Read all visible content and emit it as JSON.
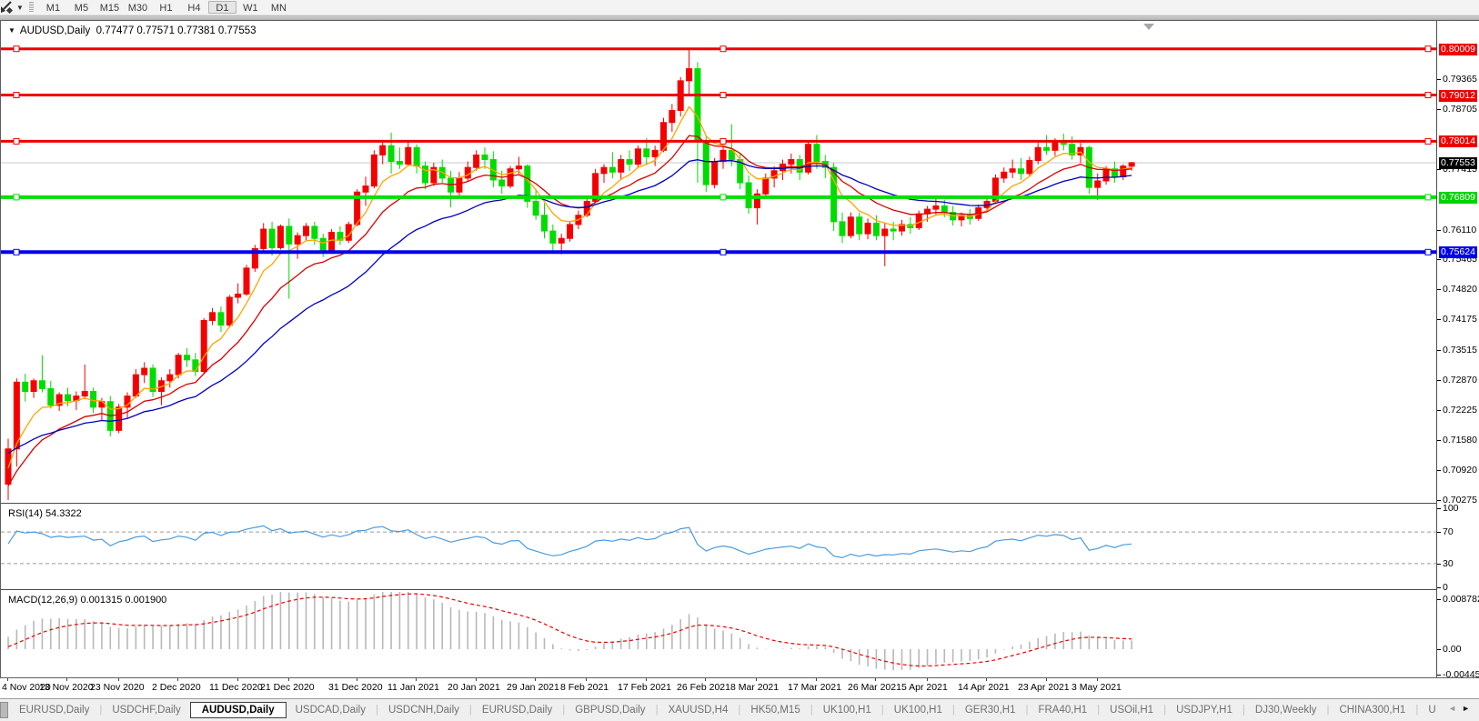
{
  "toolbar": {
    "timeframes": [
      {
        "label": "M1",
        "active": false
      },
      {
        "label": "M5",
        "active": false
      },
      {
        "label": "M15",
        "active": false
      },
      {
        "label": "M30",
        "active": false
      },
      {
        "label": "H1",
        "active": false
      },
      {
        "label": "H4",
        "active": false
      },
      {
        "label": "D1",
        "active": true
      },
      {
        "label": "W1",
        "active": false
      },
      {
        "label": "MN",
        "active": false
      }
    ],
    "dropdown_glyph": "▼"
  },
  "title": {
    "triangle": "▼",
    "symbol": "AUDUSD,Daily",
    "ohlc": "0.77477 0.77571 0.77381 0.77553"
  },
  "price_axis": {
    "ticks": [
      {
        "t": "0.79365",
        "v": 0.79365
      },
      {
        "t": "0.78705",
        "v": 0.78705
      },
      {
        "t": "0.77415",
        "v": 0.77415
      },
      {
        "t": "0.76110",
        "v": 0.7611
      },
      {
        "t": "0.75465",
        "v": 0.75465
      },
      {
        "t": "0.74820",
        "v": 0.7482
      },
      {
        "t": "0.74175",
        "v": 0.74175
      },
      {
        "t": "0.73515",
        "v": 0.73515
      },
      {
        "t": "0.72870",
        "v": 0.7287
      },
      {
        "t": "0.72225",
        "v": 0.72225
      },
      {
        "t": "0.71580",
        "v": 0.7158
      },
      {
        "t": "0.70920",
        "v": 0.7092
      },
      {
        "t": "0.70275",
        "v": 0.70275
      }
    ],
    "badges": [
      {
        "t": "0.80009",
        "v": 0.80009,
        "bg": "#EE0000",
        "fg": "#FFFFFF"
      },
      {
        "t": "0.79012",
        "v": 0.79012,
        "bg": "#EE0000",
        "fg": "#FFFFFF"
      },
      {
        "t": "0.78014",
        "v": 0.78014,
        "bg": "#EE0000",
        "fg": "#FFFFFF"
      },
      {
        "t": "0.77553",
        "v": 0.77553,
        "bg": "#000000",
        "fg": "#FFFFFF"
      },
      {
        "t": "0.76809",
        "v": 0.76809,
        "bg": "#00D400",
        "fg": "#FFFFFF"
      },
      {
        "t": "0.75624",
        "v": 0.75624,
        "bg": "#0000EE",
        "fg": "#FFFFFF"
      }
    ]
  },
  "rsi_panel": {
    "name": "RSI(14)",
    "value": "54.3322",
    "axis": [
      {
        "t": "100",
        "v": 100
      },
      {
        "t": "70",
        "v": 70
      },
      {
        "t": "30",
        "v": 30
      },
      {
        "t": "0",
        "v": 0
      }
    ],
    "dashed_levels": [
      70,
      30
    ],
    "line_color": "#4A9BDE"
  },
  "macd_panel": {
    "name": "MACD(12,26,9)",
    "values": "0.001315 0.001900",
    "axis": [
      {
        "t": "0.008782",
        "v": 0.008782
      },
      {
        "t": "0.00",
        "v": 0
      },
      {
        "t": "-0.004451",
        "v": -0.004451
      }
    ],
    "hist_color": "#B8B8B8",
    "signal_color": "#EE0000"
  },
  "dates": [
    {
      "t": "4 Nov 2020",
      "i": 0
    },
    {
      "t": "13 Nov 2020",
      "i": 7
    },
    {
      "t": "23 Nov 2020",
      "i": 13
    },
    {
      "t": "2 Dec 2020",
      "i": 20
    },
    {
      "t": "11 Dec 2020",
      "i": 27
    },
    {
      "t": "21 Dec 2020",
      "i": 33
    },
    {
      "t": "31 Dec 2020",
      "i": 41
    },
    {
      "t": "11 Jan 2021",
      "i": 48
    },
    {
      "t": "20 Jan 2021",
      "i": 55
    },
    {
      "t": "29 Jan 2021",
      "i": 62
    },
    {
      "t": "8 Feb 2021",
      "i": 68
    },
    {
      "t": "17 Feb 2021",
      "i": 75
    },
    {
      "t": "26 Feb 2021",
      "i": 82
    },
    {
      "t": "8 Mar 2021",
      "i": 88
    },
    {
      "t": "17 Mar 2021",
      "i": 95
    },
    {
      "t": "26 Mar 2021",
      "i": 102
    },
    {
      "t": "5 Apr 2021",
      "i": 108
    },
    {
      "t": "14 Apr 2021",
      "i": 115
    },
    {
      "t": "23 Apr 2021",
      "i": 122
    },
    {
      "t": "3 May 2021",
      "i": 128
    }
  ],
  "tabs": {
    "items": [
      {
        "t": "EURUSD,Daily",
        "active": false
      },
      {
        "t": "USDCHF,Daily",
        "active": false
      },
      {
        "t": "AUDUSD,Daily",
        "active": true
      },
      {
        "t": "USDCAD,Daily",
        "active": false
      },
      {
        "t": "USDCNH,Daily",
        "active": false
      },
      {
        "t": "EURUSD,Daily",
        "active": false
      },
      {
        "t": "GBPUSD,Daily",
        "active": false
      },
      {
        "t": "XAUUSD,H4",
        "active": false
      },
      {
        "t": "HK50,M15",
        "active": false
      },
      {
        "t": "UK100,H1",
        "active": false
      },
      {
        "t": "UK100,H1",
        "active": false
      },
      {
        "t": "GER30,H1",
        "active": false
      },
      {
        "t": "FRA40,H1",
        "active": false
      },
      {
        "t": "USOil,H1",
        "active": false
      },
      {
        "t": "USDJPY,H1",
        "active": false
      },
      {
        "t": "DJ30,Weekly",
        "active": false
      },
      {
        "t": "CHINA300,H1",
        "active": false
      },
      {
        "t": "U",
        "active": false
      }
    ],
    "left_arrow": "◄",
    "right_arrow": "►"
  },
  "chart_data": {
    "type": "candlestick",
    "symbol": "AUDUSD",
    "timeframe": "Daily",
    "last_ohlc": {
      "open": 0.77477,
      "high": 0.77571,
      "low": 0.77381,
      "close": 0.77553
    },
    "current_price": 0.77553,
    "convention": "red=bullish green=bearish",
    "up_color": "#F40000",
    "down_color": "#00DC00",
    "current_price_line_color": "#C8C8C8",
    "hlines": [
      {
        "price": 0.80009,
        "color": "#EE0000",
        "width": 3
      },
      {
        "price": 0.79012,
        "color": "#EE0000",
        "width": 3
      },
      {
        "price": 0.78014,
        "color": "#EE0000",
        "width": 3
      },
      {
        "price": 0.76809,
        "color": "#00E000",
        "width": 4
      },
      {
        "price": 0.75624,
        "color": "#0000EE",
        "width": 4
      }
    ],
    "moving_averages": [
      {
        "period": 6,
        "color": "#FFA500",
        "seed": 0.708
      },
      {
        "period": 13,
        "color": "#D80000",
        "seed": 0.7045
      },
      {
        "period": 26,
        "color": "#0000BE",
        "seed": 0.7128
      }
    ],
    "rsi_period": 14,
    "macd_params": [
      12,
      26,
      9
    ],
    "bars": [
      [
        0.7062,
        0.716,
        0.7028,
        0.7138
      ],
      [
        0.7138,
        0.729,
        0.71,
        0.7282
      ],
      [
        0.7282,
        0.73,
        0.724,
        0.7262
      ],
      [
        0.7262,
        0.729,
        0.7248,
        0.7285
      ],
      [
        0.7285,
        0.734,
        0.726,
        0.7268
      ],
      [
        0.7268,
        0.7285,
        0.7225,
        0.7232
      ],
      [
        0.7232,
        0.726,
        0.722,
        0.7255
      ],
      [
        0.7255,
        0.727,
        0.723,
        0.7242
      ],
      [
        0.7242,
        0.7262,
        0.7222,
        0.7252
      ],
      [
        0.7252,
        0.732,
        0.7245,
        0.7262
      ],
      [
        0.7262,
        0.727,
        0.7215,
        0.7228
      ],
      [
        0.7228,
        0.7248,
        0.72,
        0.724
      ],
      [
        0.724,
        0.7252,
        0.7165,
        0.7178
      ],
      [
        0.7178,
        0.7235,
        0.7172,
        0.7228
      ],
      [
        0.7228,
        0.726,
        0.7205,
        0.7252
      ],
      [
        0.7252,
        0.731,
        0.7248,
        0.7298
      ],
      [
        0.7298,
        0.7325,
        0.728,
        0.7312
      ],
      [
        0.7312,
        0.732,
        0.725,
        0.7262
      ],
      [
        0.7262,
        0.7292,
        0.7232,
        0.7285
      ],
      [
        0.7285,
        0.731,
        0.727,
        0.7298
      ],
      [
        0.7298,
        0.7345,
        0.729,
        0.734
      ],
      [
        0.734,
        0.7355,
        0.7315,
        0.733
      ],
      [
        0.733,
        0.7345,
        0.7295,
        0.7305
      ],
      [
        0.7305,
        0.742,
        0.73,
        0.7415
      ],
      [
        0.7415,
        0.7442,
        0.7405,
        0.7432
      ],
      [
        0.7432,
        0.7445,
        0.739,
        0.7405
      ],
      [
        0.7405,
        0.747,
        0.74,
        0.7465
      ],
      [
        0.7465,
        0.7495,
        0.7452,
        0.7472
      ],
      [
        0.7472,
        0.7535,
        0.7468,
        0.7528
      ],
      [
        0.7528,
        0.7578,
        0.752,
        0.757
      ],
      [
        0.757,
        0.7625,
        0.7562,
        0.7612
      ],
      [
        0.7612,
        0.7628,
        0.7555,
        0.7572
      ],
      [
        0.7572,
        0.7622,
        0.7568,
        0.7618
      ],
      [
        0.7618,
        0.7635,
        0.7462,
        0.758
      ],
      [
        0.758,
        0.7605,
        0.7548,
        0.7598
      ],
      [
        0.7598,
        0.7625,
        0.7588,
        0.7618
      ],
      [
        0.7618,
        0.7628,
        0.7578,
        0.7592
      ],
      [
        0.7592,
        0.7602,
        0.7552,
        0.7565
      ],
      [
        0.7565,
        0.7612,
        0.756,
        0.7605
      ],
      [
        0.7605,
        0.7618,
        0.7578,
        0.7588
      ],
      [
        0.7588,
        0.7628,
        0.7582,
        0.7622
      ],
      [
        0.7622,
        0.7698,
        0.7618,
        0.7692
      ],
      [
        0.7692,
        0.7725,
        0.7662,
        0.7705
      ],
      [
        0.7705,
        0.7782,
        0.77,
        0.7772
      ],
      [
        0.7772,
        0.78,
        0.7752,
        0.7792
      ],
      [
        0.7792,
        0.782,
        0.7732,
        0.7758
      ],
      [
        0.7758,
        0.7788,
        0.7742,
        0.7752
      ],
      [
        0.7752,
        0.7802,
        0.7748,
        0.7788
      ],
      [
        0.7788,
        0.7795,
        0.7732,
        0.7748
      ],
      [
        0.7748,
        0.7758,
        0.7698,
        0.7712
      ],
      [
        0.7712,
        0.7755,
        0.7705,
        0.7745
      ],
      [
        0.7745,
        0.7762,
        0.7712,
        0.7722
      ],
      [
        0.7722,
        0.7738,
        0.7659,
        0.7692
      ],
      [
        0.7692,
        0.7735,
        0.7685,
        0.7722
      ],
      [
        0.7722,
        0.7758,
        0.7715,
        0.7745
      ],
      [
        0.7745,
        0.7782,
        0.7738,
        0.7772
      ],
      [
        0.7772,
        0.7788,
        0.7742,
        0.7762
      ],
      [
        0.7762,
        0.778,
        0.7702,
        0.7718
      ],
      [
        0.7718,
        0.7738,
        0.7688,
        0.7705
      ],
      [
        0.7705,
        0.7748,
        0.77,
        0.7742
      ],
      [
        0.7742,
        0.7768,
        0.7732,
        0.7748
      ],
      [
        0.7748,
        0.7752,
        0.7658,
        0.7672
      ],
      [
        0.7672,
        0.7698,
        0.7632,
        0.7642
      ],
      [
        0.7642,
        0.7668,
        0.7592,
        0.7608
      ],
      [
        0.7608,
        0.7622,
        0.7562,
        0.7582
      ],
      [
        0.7582,
        0.7602,
        0.7558,
        0.7592
      ],
      [
        0.7592,
        0.7628,
        0.7585,
        0.7622
      ],
      [
        0.7622,
        0.7652,
        0.7612,
        0.7642
      ],
      [
        0.7642,
        0.7682,
        0.7638,
        0.7672
      ],
      [
        0.7672,
        0.7742,
        0.7668,
        0.7732
      ],
      [
        0.7732,
        0.7752,
        0.7712,
        0.7745
      ],
      [
        0.7745,
        0.7778,
        0.7722,
        0.7735
      ],
      [
        0.7735,
        0.7772,
        0.7718,
        0.7762
      ],
      [
        0.7762,
        0.7782,
        0.7738,
        0.7752
      ],
      [
        0.7752,
        0.7792,
        0.7745,
        0.7785
      ],
      [
        0.7785,
        0.7808,
        0.7752,
        0.7768
      ],
      [
        0.7768,
        0.7792,
        0.7748,
        0.7782
      ],
      [
        0.7782,
        0.7852,
        0.7778,
        0.7842
      ],
      [
        0.7842,
        0.7882,
        0.7822,
        0.7868
      ],
      [
        0.7868,
        0.794,
        0.7855,
        0.7932
      ],
      [
        0.7932,
        0.8001,
        0.7902,
        0.7958
      ],
      [
        0.7958,
        0.7972,
        0.7712,
        0.7802
      ],
      [
        0.7802,
        0.7812,
        0.7692,
        0.7708
      ],
      [
        0.7708,
        0.7765,
        0.77,
        0.7758
      ],
      [
        0.7758,
        0.779,
        0.7742,
        0.7782
      ],
      [
        0.7782,
        0.7838,
        0.7748,
        0.7762
      ],
      [
        0.7762,
        0.7775,
        0.7698,
        0.7712
      ],
      [
        0.7712,
        0.7728,
        0.7645,
        0.7658
      ],
      [
        0.7658,
        0.7698,
        0.7622,
        0.7688
      ],
      [
        0.7688,
        0.7732,
        0.7682,
        0.7722
      ],
      [
        0.7722,
        0.7748,
        0.7702,
        0.7738
      ],
      [
        0.7738,
        0.7762,
        0.7718,
        0.7752
      ],
      [
        0.7752,
        0.7775,
        0.7732,
        0.7762
      ],
      [
        0.7762,
        0.7772,
        0.7718,
        0.7735
      ],
      [
        0.7735,
        0.7802,
        0.773,
        0.7795
      ],
      [
        0.7795,
        0.7815,
        0.7742,
        0.7758
      ],
      [
        0.7758,
        0.7772,
        0.7722,
        0.7745
      ],
      [
        0.7745,
        0.7755,
        0.7608,
        0.7628
      ],
      [
        0.7628,
        0.7648,
        0.7582,
        0.7598
      ],
      [
        0.7598,
        0.7648,
        0.7592,
        0.7638
      ],
      [
        0.7638,
        0.7648,
        0.7588,
        0.7602
      ],
      [
        0.7602,
        0.7635,
        0.759,
        0.7625
      ],
      [
        0.7625,
        0.7642,
        0.7588,
        0.7598
      ],
      [
        0.7598,
        0.7625,
        0.7532,
        0.7612
      ],
      [
        0.7612,
        0.7628,
        0.7588,
        0.7608
      ],
      [
        0.7608,
        0.7632,
        0.7598,
        0.7622
      ],
      [
        0.7622,
        0.7638,
        0.7602,
        0.7615
      ],
      [
        0.7615,
        0.7652,
        0.761,
        0.7645
      ],
      [
        0.7645,
        0.7662,
        0.7628,
        0.7655
      ],
      [
        0.7655,
        0.7678,
        0.7642,
        0.7662
      ],
      [
        0.7662,
        0.7675,
        0.7638,
        0.7648
      ],
      [
        0.7648,
        0.7662,
        0.762,
        0.7632
      ],
      [
        0.7632,
        0.7648,
        0.7618,
        0.7642
      ],
      [
        0.7642,
        0.7655,
        0.7622,
        0.7635
      ],
      [
        0.7635,
        0.7665,
        0.763,
        0.7658
      ],
      [
        0.7658,
        0.768,
        0.7648,
        0.7672
      ],
      [
        0.7672,
        0.773,
        0.7668,
        0.7722
      ],
      [
        0.7722,
        0.7745,
        0.7712,
        0.7735
      ],
      [
        0.7735,
        0.7762,
        0.7722,
        0.7742
      ],
      [
        0.7742,
        0.7765,
        0.7718,
        0.7732
      ],
      [
        0.7732,
        0.7768,
        0.7725,
        0.776
      ],
      [
        0.776,
        0.7798,
        0.7752,
        0.7788
      ],
      [
        0.7788,
        0.7815,
        0.7772,
        0.7782
      ],
      [
        0.7782,
        0.7808,
        0.777,
        0.78
      ],
      [
        0.78,
        0.7818,
        0.7782,
        0.7795
      ],
      [
        0.7795,
        0.7812,
        0.7762,
        0.7772
      ],
      [
        0.7772,
        0.7798,
        0.7755,
        0.7788
      ],
      [
        0.7788,
        0.7792,
        0.7688,
        0.7702
      ],
      [
        0.7702,
        0.7732,
        0.7675,
        0.7716
      ],
      [
        0.7716,
        0.7748,
        0.7708,
        0.7742
      ],
      [
        0.7742,
        0.7758,
        0.7712,
        0.7725
      ],
      [
        0.7725,
        0.7752,
        0.7718,
        0.7748
      ],
      [
        0.77477,
        0.77571,
        0.77381,
        0.77553
      ]
    ]
  }
}
